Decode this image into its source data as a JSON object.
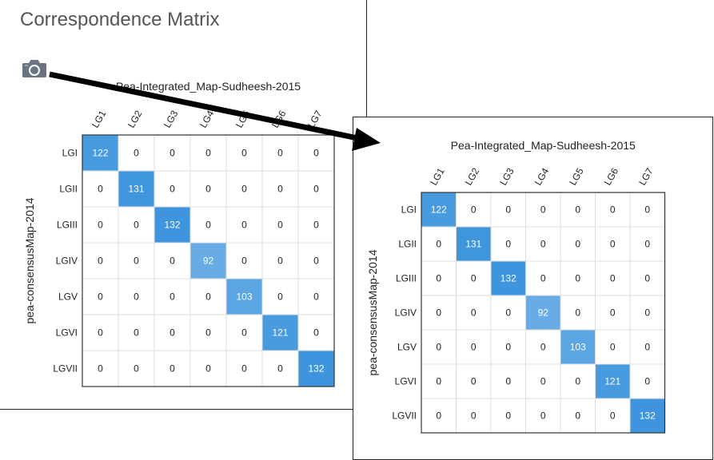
{
  "page_title": "Correspondence Matrix",
  "camera_icon": "camera-icon",
  "colors": {
    "accent": "#3e95dd",
    "accent_light": "#6fb3e6",
    "grid": "#dddddd",
    "border": "#333333"
  },
  "chart_data": {
    "type": "heatmap",
    "title": "Pea-Integrated_Map-Sudheesh-2015",
    "ylabel": "pea-consensusMap-2014",
    "xlabel": "",
    "columns": [
      "LG1",
      "LG2",
      "LG3",
      "LG4",
      "LG5",
      "LG6",
      "LG7"
    ],
    "rows": [
      "LGI",
      "LGII",
      "LGIII",
      "LGIV",
      "LGV",
      "LGVI",
      "LGVII"
    ],
    "values": [
      [
        122,
        0,
        0,
        0,
        0,
        0,
        0
      ],
      [
        0,
        131,
        0,
        0,
        0,
        0,
        0
      ],
      [
        0,
        0,
        132,
        0,
        0,
        0,
        0
      ],
      [
        0,
        0,
        0,
        92,
        0,
        0,
        0
      ],
      [
        0,
        0,
        0,
        0,
        103,
        0,
        0
      ],
      [
        0,
        0,
        0,
        0,
        0,
        121,
        0
      ],
      [
        0,
        0,
        0,
        0,
        0,
        0,
        132
      ]
    ],
    "color_max": 132
  }
}
